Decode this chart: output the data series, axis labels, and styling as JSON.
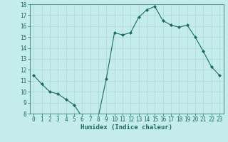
{
  "x": [
    0,
    1,
    2,
    3,
    4,
    5,
    6,
    7,
    8,
    9,
    10,
    11,
    12,
    13,
    14,
    15,
    16,
    17,
    18,
    19,
    20,
    21,
    22,
    23
  ],
  "y": [
    11.5,
    10.7,
    10.0,
    9.8,
    9.3,
    8.8,
    7.7,
    7.7,
    7.7,
    11.2,
    15.4,
    15.2,
    15.4,
    16.8,
    17.5,
    17.8,
    16.5,
    16.1,
    15.9,
    16.1,
    15.0,
    13.7,
    12.3,
    11.5
  ],
  "line_color": "#1a6b5a",
  "marker": "D",
  "marker_size": 2,
  "bg_color": "#c5ecec",
  "grid_color": "#aed6d6",
  "xlabel": "Humidex (Indice chaleur)",
  "ylim": [
    8,
    18
  ],
  "xlim": [
    -0.5,
    23.5
  ],
  "yticks": [
    8,
    9,
    10,
    11,
    12,
    13,
    14,
    15,
    16,
    17,
    18
  ],
  "xticks": [
    0,
    1,
    2,
    3,
    4,
    5,
    6,
    7,
    8,
    9,
    10,
    11,
    12,
    13,
    14,
    15,
    16,
    17,
    18,
    19,
    20,
    21,
    22,
    23
  ],
  "tick_color": "#1a6b5a",
  "label_fontsize": 6.5,
  "tick_fontsize": 5.5,
  "linewidth": 0.8
}
